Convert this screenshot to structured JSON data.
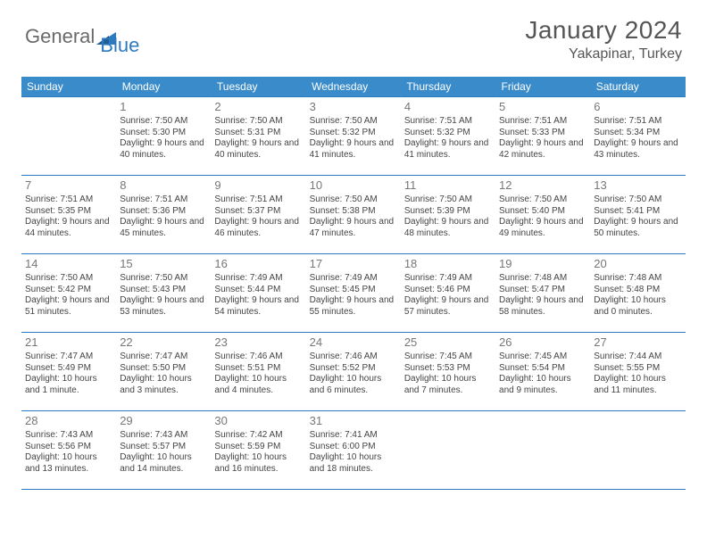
{
  "logo": {
    "part1": "General",
    "part2": "Blue"
  },
  "title": "January 2024",
  "location": "Yakapinar, Turkey",
  "colors": {
    "header_bg": "#3a8bc9",
    "header_text": "#ffffff",
    "border": "#2e7ac0",
    "daynum": "#777777",
    "body_text": "#444444",
    "logo_gray": "#6a6a6a",
    "logo_blue": "#2e7ac0"
  },
  "day_headers": [
    "Sunday",
    "Monday",
    "Tuesday",
    "Wednesday",
    "Thursday",
    "Friday",
    "Saturday"
  ],
  "weeks": [
    [
      {
        "n": "",
        "sr": "",
        "ss": "",
        "dl": ""
      },
      {
        "n": "1",
        "sr": "Sunrise: 7:50 AM",
        "ss": "Sunset: 5:30 PM",
        "dl": "Daylight: 9 hours and 40 minutes."
      },
      {
        "n": "2",
        "sr": "Sunrise: 7:50 AM",
        "ss": "Sunset: 5:31 PM",
        "dl": "Daylight: 9 hours and 40 minutes."
      },
      {
        "n": "3",
        "sr": "Sunrise: 7:50 AM",
        "ss": "Sunset: 5:32 PM",
        "dl": "Daylight: 9 hours and 41 minutes."
      },
      {
        "n": "4",
        "sr": "Sunrise: 7:51 AM",
        "ss": "Sunset: 5:32 PM",
        "dl": "Daylight: 9 hours and 41 minutes."
      },
      {
        "n": "5",
        "sr": "Sunrise: 7:51 AM",
        "ss": "Sunset: 5:33 PM",
        "dl": "Daylight: 9 hours and 42 minutes."
      },
      {
        "n": "6",
        "sr": "Sunrise: 7:51 AM",
        "ss": "Sunset: 5:34 PM",
        "dl": "Daylight: 9 hours and 43 minutes."
      }
    ],
    [
      {
        "n": "7",
        "sr": "Sunrise: 7:51 AM",
        "ss": "Sunset: 5:35 PM",
        "dl": "Daylight: 9 hours and 44 minutes."
      },
      {
        "n": "8",
        "sr": "Sunrise: 7:51 AM",
        "ss": "Sunset: 5:36 PM",
        "dl": "Daylight: 9 hours and 45 minutes."
      },
      {
        "n": "9",
        "sr": "Sunrise: 7:51 AM",
        "ss": "Sunset: 5:37 PM",
        "dl": "Daylight: 9 hours and 46 minutes."
      },
      {
        "n": "10",
        "sr": "Sunrise: 7:50 AM",
        "ss": "Sunset: 5:38 PM",
        "dl": "Daylight: 9 hours and 47 minutes."
      },
      {
        "n": "11",
        "sr": "Sunrise: 7:50 AM",
        "ss": "Sunset: 5:39 PM",
        "dl": "Daylight: 9 hours and 48 minutes."
      },
      {
        "n": "12",
        "sr": "Sunrise: 7:50 AM",
        "ss": "Sunset: 5:40 PM",
        "dl": "Daylight: 9 hours and 49 minutes."
      },
      {
        "n": "13",
        "sr": "Sunrise: 7:50 AM",
        "ss": "Sunset: 5:41 PM",
        "dl": "Daylight: 9 hours and 50 minutes."
      }
    ],
    [
      {
        "n": "14",
        "sr": "Sunrise: 7:50 AM",
        "ss": "Sunset: 5:42 PM",
        "dl": "Daylight: 9 hours and 51 minutes."
      },
      {
        "n": "15",
        "sr": "Sunrise: 7:50 AM",
        "ss": "Sunset: 5:43 PM",
        "dl": "Daylight: 9 hours and 53 minutes."
      },
      {
        "n": "16",
        "sr": "Sunrise: 7:49 AM",
        "ss": "Sunset: 5:44 PM",
        "dl": "Daylight: 9 hours and 54 minutes."
      },
      {
        "n": "17",
        "sr": "Sunrise: 7:49 AM",
        "ss": "Sunset: 5:45 PM",
        "dl": "Daylight: 9 hours and 55 minutes."
      },
      {
        "n": "18",
        "sr": "Sunrise: 7:49 AM",
        "ss": "Sunset: 5:46 PM",
        "dl": "Daylight: 9 hours and 57 minutes."
      },
      {
        "n": "19",
        "sr": "Sunrise: 7:48 AM",
        "ss": "Sunset: 5:47 PM",
        "dl": "Daylight: 9 hours and 58 minutes."
      },
      {
        "n": "20",
        "sr": "Sunrise: 7:48 AM",
        "ss": "Sunset: 5:48 PM",
        "dl": "Daylight: 10 hours and 0 minutes."
      }
    ],
    [
      {
        "n": "21",
        "sr": "Sunrise: 7:47 AM",
        "ss": "Sunset: 5:49 PM",
        "dl": "Daylight: 10 hours and 1 minute."
      },
      {
        "n": "22",
        "sr": "Sunrise: 7:47 AM",
        "ss": "Sunset: 5:50 PM",
        "dl": "Daylight: 10 hours and 3 minutes."
      },
      {
        "n": "23",
        "sr": "Sunrise: 7:46 AM",
        "ss": "Sunset: 5:51 PM",
        "dl": "Daylight: 10 hours and 4 minutes."
      },
      {
        "n": "24",
        "sr": "Sunrise: 7:46 AM",
        "ss": "Sunset: 5:52 PM",
        "dl": "Daylight: 10 hours and 6 minutes."
      },
      {
        "n": "25",
        "sr": "Sunrise: 7:45 AM",
        "ss": "Sunset: 5:53 PM",
        "dl": "Daylight: 10 hours and 7 minutes."
      },
      {
        "n": "26",
        "sr": "Sunrise: 7:45 AM",
        "ss": "Sunset: 5:54 PM",
        "dl": "Daylight: 10 hours and 9 minutes."
      },
      {
        "n": "27",
        "sr": "Sunrise: 7:44 AM",
        "ss": "Sunset: 5:55 PM",
        "dl": "Daylight: 10 hours and 11 minutes."
      }
    ],
    [
      {
        "n": "28",
        "sr": "Sunrise: 7:43 AM",
        "ss": "Sunset: 5:56 PM",
        "dl": "Daylight: 10 hours and 13 minutes."
      },
      {
        "n": "29",
        "sr": "Sunrise: 7:43 AM",
        "ss": "Sunset: 5:57 PM",
        "dl": "Daylight: 10 hours and 14 minutes."
      },
      {
        "n": "30",
        "sr": "Sunrise: 7:42 AM",
        "ss": "Sunset: 5:59 PM",
        "dl": "Daylight: 10 hours and 16 minutes."
      },
      {
        "n": "31",
        "sr": "Sunrise: 7:41 AM",
        "ss": "Sunset: 6:00 PM",
        "dl": "Daylight: 10 hours and 18 minutes."
      },
      {
        "n": "",
        "sr": "",
        "ss": "",
        "dl": ""
      },
      {
        "n": "",
        "sr": "",
        "ss": "",
        "dl": ""
      },
      {
        "n": "",
        "sr": "",
        "ss": "",
        "dl": ""
      }
    ]
  ]
}
